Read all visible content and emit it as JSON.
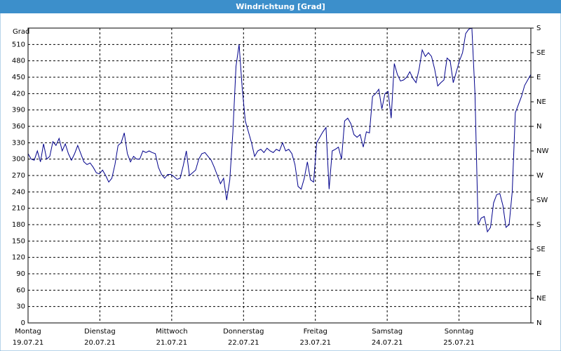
{
  "chart_data": {
    "type": "line",
    "title": "Windrichtung [Grad]",
    "y_label": "Grad",
    "x_labels": [
      {
        "day": "Montag",
        "date": "19.07.21"
      },
      {
        "day": "Dienstag",
        "date": "20.07.21"
      },
      {
        "day": "Mittwoch",
        "date": "21.07.21"
      },
      {
        "day": "Donnerstag",
        "date": "22.07.21"
      },
      {
        "day": "Freitag",
        "date": "23.07.21"
      },
      {
        "day": "Samstag",
        "date": "24.07.21"
      },
      {
        "day": "Sonntag",
        "date": "25.07.21"
      }
    ],
    "ylim": [
      0,
      540
    ],
    "yticks": [
      0,
      30,
      60,
      90,
      120,
      150,
      180,
      210,
      240,
      270,
      300,
      330,
      360,
      390,
      420,
      450,
      480,
      510
    ],
    "y2lim": [
      0,
      540
    ],
    "y2ticks": [
      {
        "value": 0,
        "label": "N"
      },
      {
        "value": 45,
        "label": "NE"
      },
      {
        "value": 90,
        "label": "E"
      },
      {
        "value": 135,
        "label": "SE"
      },
      {
        "value": 180,
        "label": "S"
      },
      {
        "value": 225,
        "label": "SW"
      },
      {
        "value": 270,
        "label": "W"
      },
      {
        "value": 315,
        "label": "NW"
      },
      {
        "value": 360,
        "label": "N"
      },
      {
        "value": 405,
        "label": "NE"
      },
      {
        "value": 450,
        "label": "E"
      },
      {
        "value": 495,
        "label": "SE"
      },
      {
        "value": 540,
        "label": "S"
      }
    ],
    "grid": true,
    "series": [
      {
        "color": "#00008b",
        "values": [
          310,
          300,
          298,
          315,
          295,
          328,
          300,
          305,
          332,
          325,
          338,
          315,
          328,
          310,
          298,
          310,
          325,
          310,
          295,
          290,
          293,
          285,
          275,
          273,
          280,
          270,
          258,
          265,
          290,
          325,
          330,
          348,
          310,
          295,
          305,
          300,
          300,
          315,
          312,
          315,
          312,
          310,
          285,
          272,
          265,
          272,
          272,
          268,
          263,
          265,
          288,
          315,
          270,
          275,
          280,
          300,
          310,
          312,
          305,
          298,
          285,
          270,
          255,
          265,
          225,
          262,
          350,
          470,
          510,
          430,
          370,
          350,
          330,
          305,
          315,
          318,
          312,
          320,
          315,
          312,
          318,
          315,
          330,
          315,
          318,
          310,
          290,
          250,
          245,
          265,
          295,
          262,
          258,
          330,
          340,
          350,
          358,
          245,
          315,
          318,
          322,
          300,
          370,
          375,
          365,
          345,
          340,
          345,
          322,
          350,
          348,
          415,
          420,
          428,
          392,
          420,
          424,
          375,
          475,
          455,
          443,
          445,
          450,
          460,
          448,
          440,
          465,
          500,
          488,
          495,
          488,
          465,
          434,
          440,
          445,
          485,
          480,
          440,
          460,
          480,
          495,
          530,
          538,
          540,
          420,
          180,
          192,
          195,
          167,
          175,
          220,
          235,
          237,
          215,
          175,
          180,
          240,
          385,
          400,
          415,
          435,
          445,
          455
        ]
      }
    ]
  }
}
